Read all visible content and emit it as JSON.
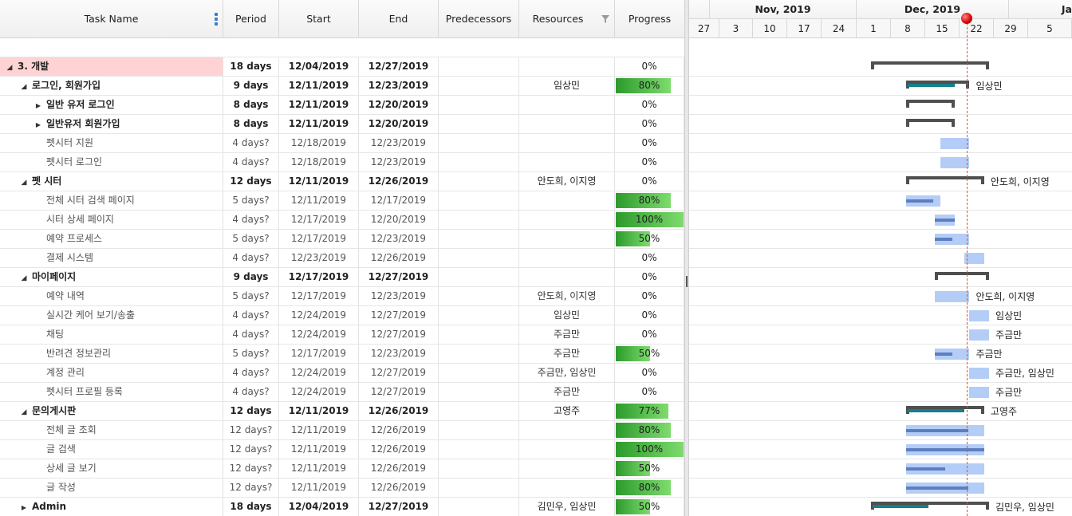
{
  "columns": {
    "task_name": "Task Name",
    "period": "Period",
    "start": "Start",
    "end": "End",
    "predecessors": "Predecessors",
    "resources": "Resources",
    "progress": "Progress"
  },
  "timeline": {
    "months": [
      "Nov, 2019",
      "Dec, 2019",
      "Ja"
    ],
    "weeks": [
      "27",
      "3",
      "10",
      "17",
      "24",
      "1",
      "8",
      "15",
      "22",
      "29",
      "5"
    ]
  },
  "rows": [
    {
      "level": 0,
      "toggle": "expanded",
      "name": "3. 개발",
      "period": "18 days",
      "start": "12/04/2019",
      "end": "12/27/2019",
      "resources": "",
      "progress": "0%",
      "bold": true,
      "highlight": true,
      "pct": 0
    },
    {
      "level": 1,
      "toggle": "expanded",
      "name": "로그인, 회원가입",
      "period": "9 days",
      "start": "12/11/2019",
      "end": "12/23/2019",
      "resources": "임상민",
      "progress": "80%",
      "bold": true,
      "pct": 80
    },
    {
      "level": 2,
      "toggle": "collapsed",
      "name": "일반 유저 로그인",
      "period": "8 days",
      "start": "12/11/2019",
      "end": "12/20/2019",
      "resources": "",
      "progress": "0%",
      "bold": true,
      "pct": 0
    },
    {
      "level": 2,
      "toggle": "collapsed",
      "name": "일반유저 회원가입",
      "period": "8 days",
      "start": "12/11/2019",
      "end": "12/20/2019",
      "resources": "",
      "progress": "0%",
      "bold": true,
      "pct": 0
    },
    {
      "level": 2,
      "toggle": "none",
      "name": "펫시터 지원",
      "period": "4 days?",
      "start": "12/18/2019",
      "end": "12/23/2019",
      "resources": "",
      "progress": "0%",
      "bold": false,
      "pct": 0
    },
    {
      "level": 2,
      "toggle": "none",
      "name": "펫시터 로그인",
      "period": "4 days?",
      "start": "12/18/2019",
      "end": "12/23/2019",
      "resources": "",
      "progress": "0%",
      "bold": false,
      "pct": 0
    },
    {
      "level": 1,
      "toggle": "expanded",
      "name": "펫 시터",
      "period": "12 days",
      "start": "12/11/2019",
      "end": "12/26/2019",
      "resources": "안도희, 이지영",
      "progress": "0%",
      "bold": true,
      "pct": 0
    },
    {
      "level": 2,
      "toggle": "none",
      "name": "전체 시터 검색 페이지",
      "period": "5 days?",
      "start": "12/11/2019",
      "end": "12/17/2019",
      "resources": "",
      "progress": "80%",
      "bold": false,
      "pct": 80
    },
    {
      "level": 2,
      "toggle": "none",
      "name": "시터 상세 페이지",
      "period": "4 days?",
      "start": "12/17/2019",
      "end": "12/20/2019",
      "resources": "",
      "progress": "100%",
      "bold": false,
      "pct": 100
    },
    {
      "level": 2,
      "toggle": "none",
      "name": "예약 프로세스",
      "period": "5 days?",
      "start": "12/17/2019",
      "end": "12/23/2019",
      "resources": "",
      "progress": "50%",
      "bold": false,
      "pct": 50
    },
    {
      "level": 2,
      "toggle": "none",
      "name": "결제 시스템",
      "period": "4 days?",
      "start": "12/23/2019",
      "end": "12/26/2019",
      "resources": "",
      "progress": "0%",
      "bold": false,
      "pct": 0
    },
    {
      "level": 1,
      "toggle": "expanded",
      "name": "마이페이지",
      "period": "9 days",
      "start": "12/17/2019",
      "end": "12/27/2019",
      "resources": "",
      "progress": "0%",
      "bold": true,
      "pct": 0
    },
    {
      "level": 2,
      "toggle": "none",
      "name": "예약 내역",
      "period": "5 days?",
      "start": "12/17/2019",
      "end": "12/23/2019",
      "resources": "안도희, 이지영",
      "progress": "0%",
      "bold": false,
      "pct": 0
    },
    {
      "level": 2,
      "toggle": "none",
      "name": "실시간 케어 보기/송출",
      "period": "4 days?",
      "start": "12/24/2019",
      "end": "12/27/2019",
      "resources": "임상민",
      "progress": "0%",
      "bold": false,
      "pct": 0
    },
    {
      "level": 2,
      "toggle": "none",
      "name": "채팅",
      "period": "4 days?",
      "start": "12/24/2019",
      "end": "12/27/2019",
      "resources": "주금만",
      "progress": "0%",
      "bold": false,
      "pct": 0
    },
    {
      "level": 2,
      "toggle": "none",
      "name": "반려견 정보관리",
      "period": "5 days?",
      "start": "12/17/2019",
      "end": "12/23/2019",
      "resources": "주금만",
      "progress": "50%",
      "bold": false,
      "pct": 50
    },
    {
      "level": 2,
      "toggle": "none",
      "name": "계정 관리",
      "period": "4 days?",
      "start": "12/24/2019",
      "end": "12/27/2019",
      "resources": "주금만, 임상민",
      "progress": "0%",
      "bold": false,
      "pct": 0
    },
    {
      "level": 2,
      "toggle": "none",
      "name": "펫시터 프로필 등록",
      "period": "4 days?",
      "start": "12/24/2019",
      "end": "12/27/2019",
      "resources": "주금만",
      "progress": "0%",
      "bold": false,
      "pct": 0
    },
    {
      "level": 1,
      "toggle": "expanded",
      "name": "문의게시판",
      "period": "12 days",
      "start": "12/11/2019",
      "end": "12/26/2019",
      "resources": "고영주",
      "progress": "77%",
      "bold": true,
      "pct": 77
    },
    {
      "level": 2,
      "toggle": "none",
      "name": "전체 글 조회",
      "period": "12 days?",
      "start": "12/11/2019",
      "end": "12/26/2019",
      "resources": "",
      "progress": "80%",
      "bold": false,
      "pct": 80
    },
    {
      "level": 2,
      "toggle": "none",
      "name": "글 검색",
      "period": "12 days?",
      "start": "12/11/2019",
      "end": "12/26/2019",
      "resources": "",
      "progress": "100%",
      "bold": false,
      "pct": 100
    },
    {
      "level": 2,
      "toggle": "none",
      "name": "상세 글 보기",
      "period": "12 days?",
      "start": "12/11/2019",
      "end": "12/26/2019",
      "resources": "",
      "progress": "50%",
      "bold": false,
      "pct": 50
    },
    {
      "level": 2,
      "toggle": "none",
      "name": "글 작성",
      "period": "12 days?",
      "start": "12/11/2019",
      "end": "12/26/2019",
      "resources": "",
      "progress": "80%",
      "bold": false,
      "pct": 80
    },
    {
      "level": 1,
      "toggle": "collapsed",
      "name": "Admin",
      "period": "18 days",
      "start": "12/04/2019",
      "end": "12/27/2019",
      "resources": "김민우, 임상민",
      "progress": "50%",
      "bold": true,
      "pct": 50
    }
  ],
  "colors": {
    "highlight_row": "#ffd3d3",
    "progress_green": "#2c9a2c",
    "task_bar": "#b4cdf7",
    "summary_bar": "#4f4f4f",
    "summary_progress": "#13808c",
    "today_marker": "#d40000"
  }
}
